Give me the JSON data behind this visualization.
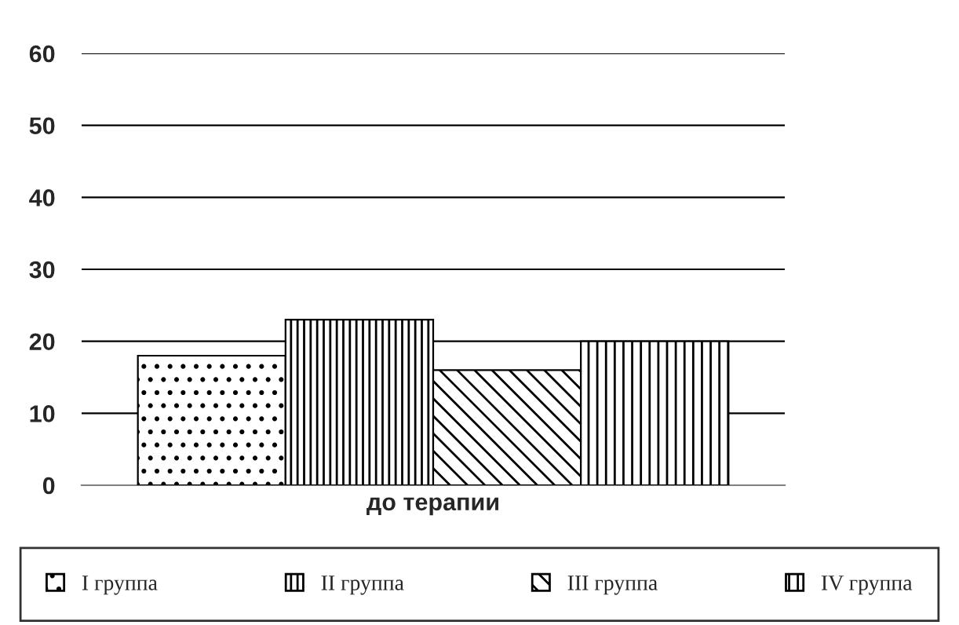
{
  "chart_data": {
    "type": "bar",
    "categories": [
      "до терапии"
    ],
    "series": [
      {
        "name": "I группа",
        "color": "#000000",
        "values": [
          18
        ]
      },
      {
        "name": "II группа",
        "color": "#000000",
        "values": [
          23
        ]
      },
      {
        "name": "III группа",
        "color": "#000000",
        "values": [
          16
        ]
      },
      {
        "name": "IV группа",
        "color": "#000000",
        "values": [
          20
        ]
      }
    ],
    "ylim": [
      0,
      60
    ],
    "yticks": [
      0,
      10,
      20,
      30,
      40,
      50,
      60
    ],
    "grid": "y",
    "legend": "bottom"
  }
}
